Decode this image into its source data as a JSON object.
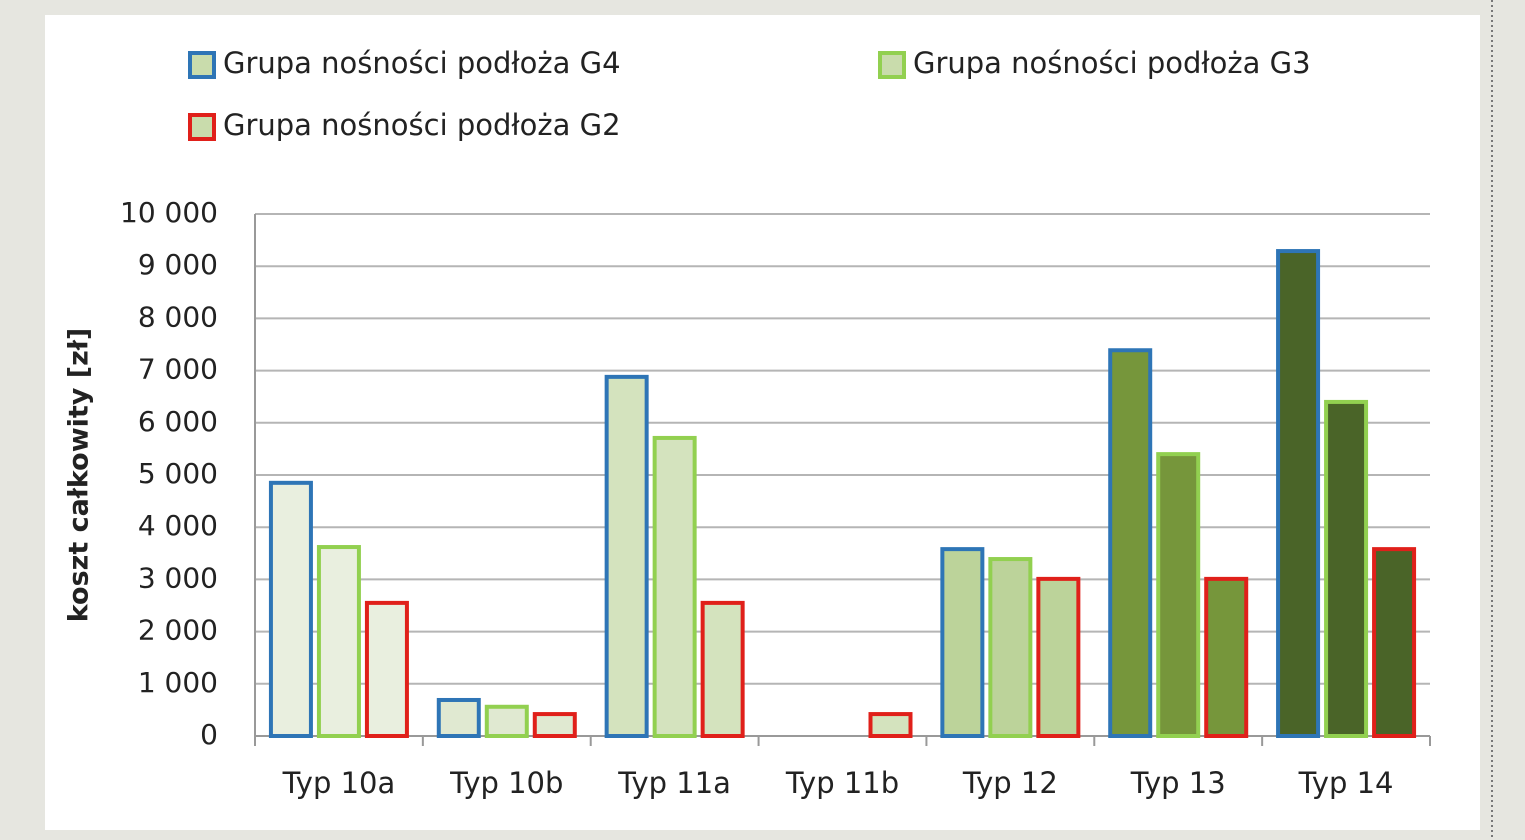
{
  "chart_data": {
    "type": "bar",
    "y_label": "koszt całkowity [zł]",
    "categories": [
      "Typ 10a",
      "Typ 10b",
      "Typ 11a",
      "Typ 11b",
      "Typ 12",
      "Typ 13",
      "Typ 14"
    ],
    "category_fills": [
      "#e9efdf",
      "#e0e9d1",
      "#d4e3be",
      "#d4e3be",
      "#bcd39a",
      "#76963b",
      "#4a6428"
    ],
    "legend_fill": "#c9dcac",
    "series": [
      {
        "name": "Grupa nośności podłoża G4",
        "color": "#2e75b6",
        "values": [
          4850,
          690,
          6880,
          null,
          3580,
          7390,
          9290
        ]
      },
      {
        "name": "Grupa nośności podłoża G3",
        "color": "#92d050",
        "values": [
          3620,
          560,
          5710,
          null,
          3390,
          5400,
          6400
        ]
      },
      {
        "name": "Grupa nośności podłoża G2",
        "color": "#e0201a",
        "values": [
          2550,
          420,
          2550,
          420,
          3010,
          3010,
          3580
        ]
      }
    ],
    "ylim": [
      0,
      10000
    ],
    "yticks": [
      0,
      {
        "value": 1000,
        "label": "1 000"
      },
      {
        "value": 2000,
        "label": "2 000"
      },
      {
        "value": 3000,
        "label": "3 000"
      },
      {
        "value": 4000,
        "label": "4 000"
      },
      {
        "value": 5000,
        "label": "5 000"
      },
      {
        "value": 6000,
        "label": "6 000"
      },
      {
        "value": 7000,
        "label": "7 000"
      },
      {
        "value": 8000,
        "label": "8 000"
      },
      {
        "value": 9000,
        "label": "9 000"
      },
      {
        "value": 10000,
        "label": "10 000"
      }
    ],
    "grid": true
  }
}
